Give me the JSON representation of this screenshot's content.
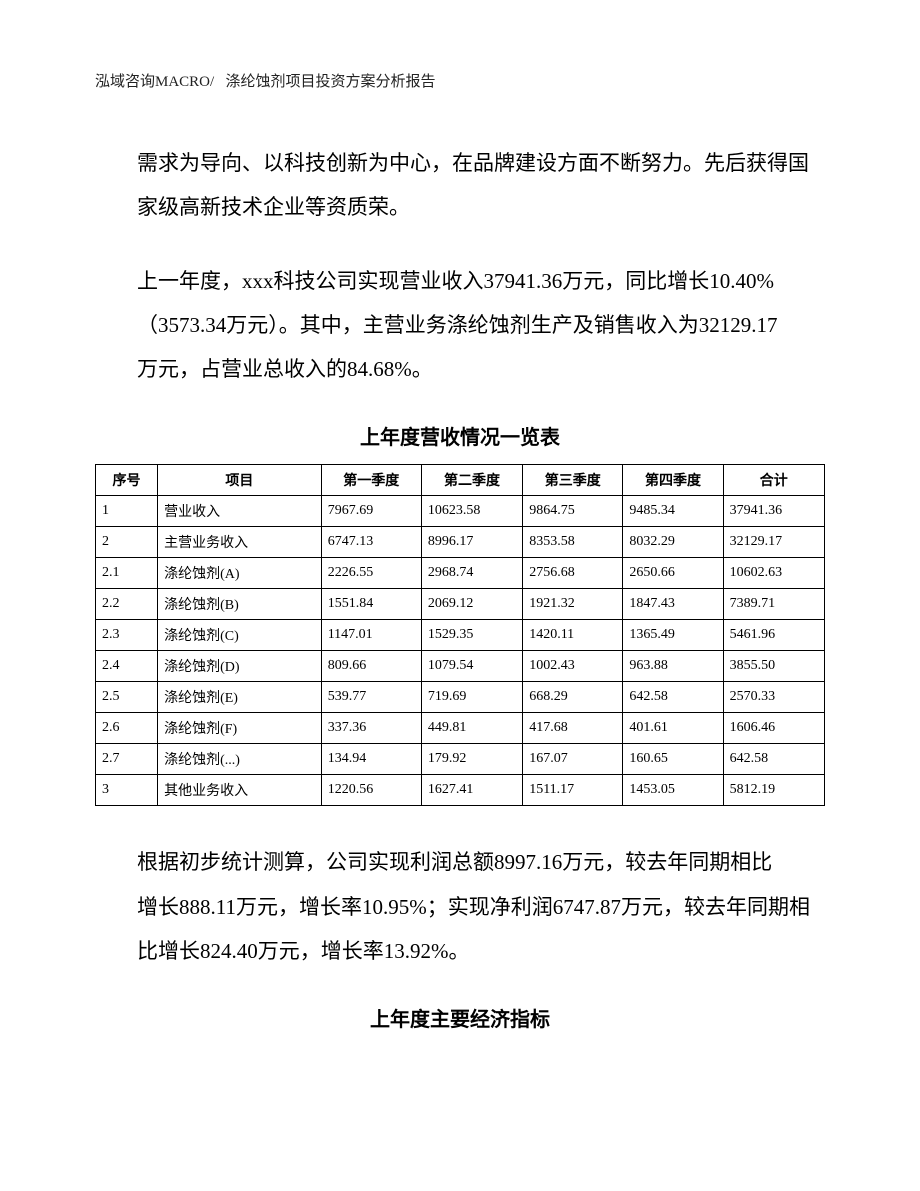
{
  "header": {
    "left": "泓域咨询MACRO/",
    "right": "涤纶蚀剂项目投资方案分析报告"
  },
  "paragraphs": {
    "p1_line1": "需求为导向、以科技创新为中心，在品牌建设方面不断努力。先后获得国",
    "p1_line2": "家级高新技术企业等资质荣。",
    "p2_line1": "上一年度，xxx科技公司实现营业收入37941.36万元，同比增长10.40%",
    "p2_line2": "（3573.34万元）。其中，主营业务涤纶蚀剂生产及销售收入为32129.17",
    "p2_line3": "万元，占营业总收入的84.68%。",
    "p3_line1": "根据初步统计测算，公司实现利润总额8997.16万元，较去年同期相比",
    "p3_line2": "增长888.11万元，增长率10.95%；实现净利润6747.87万元，较去年同期相",
    "p3_line3": "比增长824.40万元，增长率13.92%。"
  },
  "table1": {
    "title": "上年度营收情况一览表",
    "columns": [
      "序号",
      "项目",
      "第一季度",
      "第二季度",
      "第三季度",
      "第四季度",
      "合计"
    ],
    "rows": [
      [
        "1",
        "营业收入",
        "7967.69",
        "10623.58",
        "9864.75",
        "9485.34",
        "37941.36"
      ],
      [
        "2",
        "主营业务收入",
        "6747.13",
        "8996.17",
        "8353.58",
        "8032.29",
        "32129.17"
      ],
      [
        "2.1",
        "涤纶蚀剂(A)",
        "2226.55",
        "2968.74",
        "2756.68",
        "2650.66",
        "10602.63"
      ],
      [
        "2.2",
        "涤纶蚀剂(B)",
        "1551.84",
        "2069.12",
        "1921.32",
        "1847.43",
        "7389.71"
      ],
      [
        "2.3",
        "涤纶蚀剂(C)",
        "1147.01",
        "1529.35",
        "1420.11",
        "1365.49",
        "5461.96"
      ],
      [
        "2.4",
        "涤纶蚀剂(D)",
        "809.66",
        "1079.54",
        "1002.43",
        "963.88",
        "3855.50"
      ],
      [
        "2.5",
        "涤纶蚀剂(E)",
        "539.77",
        "719.69",
        "668.29",
        "642.58",
        "2570.33"
      ],
      [
        "2.6",
        "涤纶蚀剂(F)",
        "337.36",
        "449.81",
        "417.68",
        "401.61",
        "1606.46"
      ],
      [
        "2.7",
        "涤纶蚀剂(...)",
        "134.94",
        "179.92",
        "167.07",
        "160.65",
        "642.58"
      ],
      [
        "3",
        "其他业务收入",
        "1220.56",
        "1627.41",
        "1511.17",
        "1453.05",
        "5812.19"
      ]
    ]
  },
  "table2": {
    "title": "上年度主要经济指标"
  }
}
